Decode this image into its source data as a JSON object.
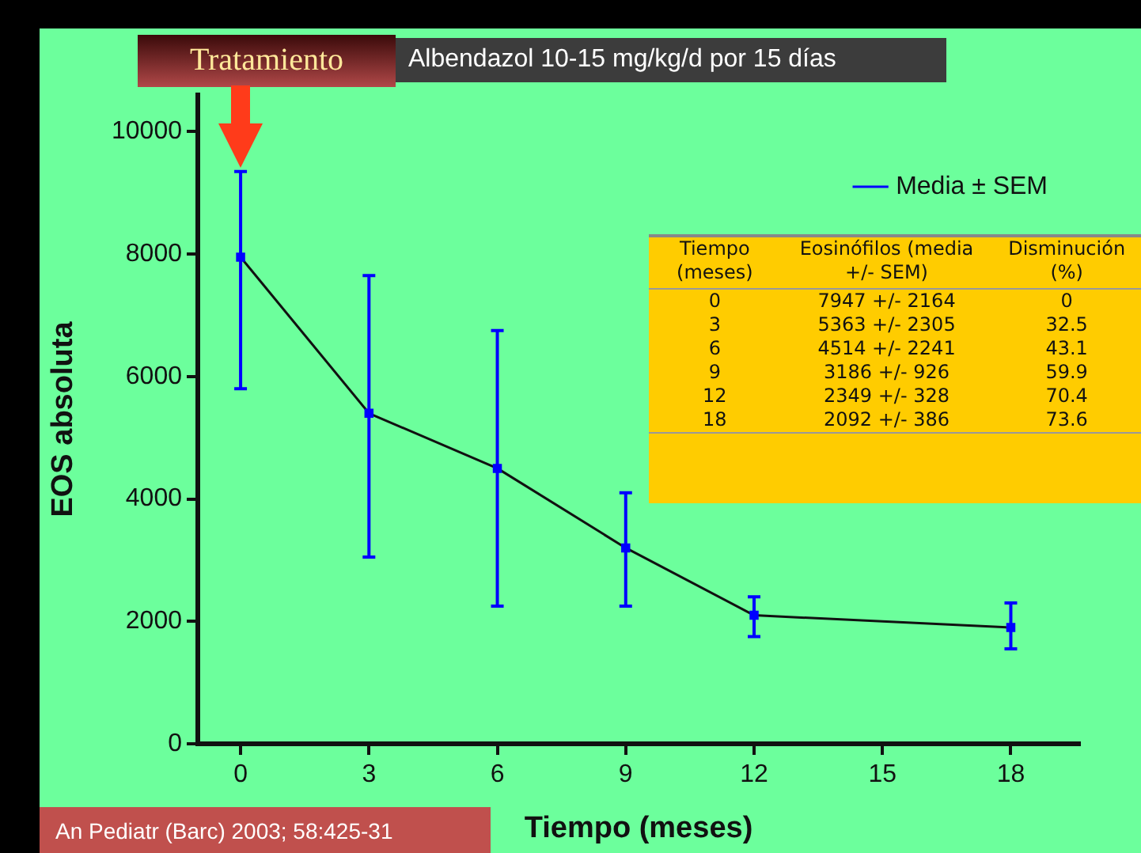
{
  "chart_data": {
    "type": "line",
    "xlabel": "Tiempo (meses)",
    "ylabel": "EOS absoluta",
    "x": [
      0,
      3,
      6,
      9,
      12,
      18
    ],
    "series": [
      {
        "name": "Media ± SEM",
        "color": "#0000ff",
        "values": [
          7950,
          5400,
          4500,
          3200,
          2100,
          1900
        ],
        "errors": [
          [
            5800,
            9350
          ],
          [
            3050,
            7650
          ],
          [
            2250,
            6750
          ],
          [
            2250,
            4100
          ],
          [
            1750,
            2400
          ],
          [
            1550,
            2300
          ]
        ]
      }
    ],
    "xlim": [
      -1,
      19.6
    ],
    "xticks": [
      0,
      3,
      6,
      9,
      12,
      15,
      18
    ],
    "ylim": [
      0,
      10600
    ],
    "yticks": [
      0,
      2000,
      4000,
      6000,
      8000,
      10000
    ],
    "grid": false,
    "legend": "top right",
    "marker": "square",
    "line_style": "solid",
    "annotations": [
      {
        "text": "Tratamiento",
        "x": 0,
        "y": 9400
      },
      "Albendazol 10-15 mg/kg/d por 15 días",
      "An Pediatr (Barc) 2003; 58:425-31",
      "Tiempo (meses)",
      "Eosinófilos (media +/- SEM)",
      "Disminución (%)",
      "0",
      "7947 +/- 2164",
      "0",
      "3",
      "5363 +/- 2305",
      "32.5",
      "6",
      "4514 +/- 2241",
      "43.1",
      "9",
      "3186 +/- 926",
      "59.9",
      "12",
      "2349 +/- 328",
      "70.4",
      "18",
      "2092 +/- 386",
      "73.6"
    ]
  }
}
